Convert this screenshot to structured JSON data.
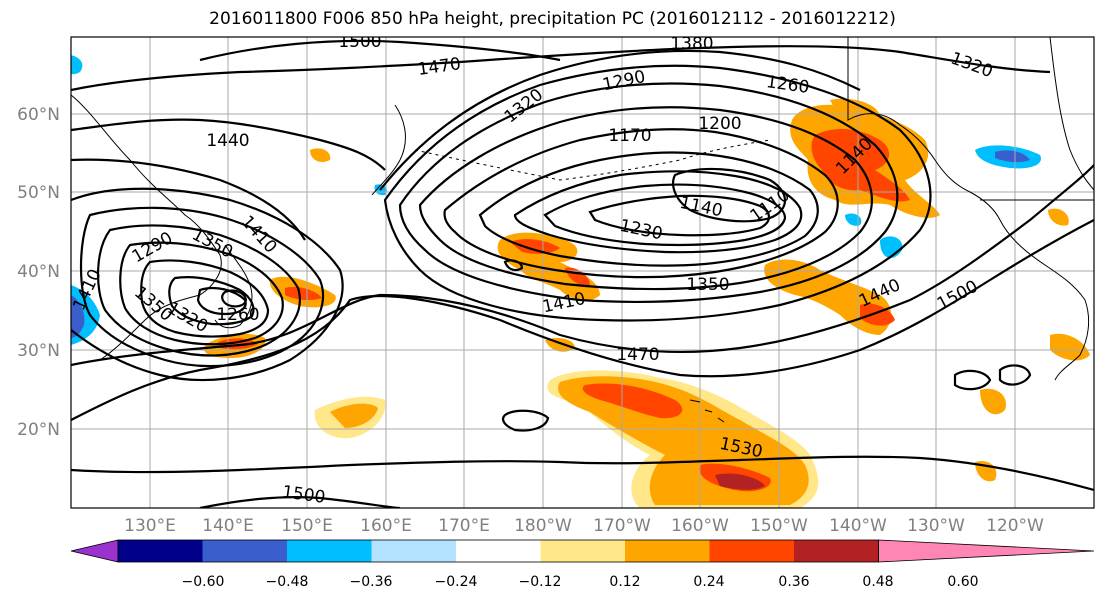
{
  "title": "2016011800 F006 850 hPa height, precipitation PC (2016012112 - 2016012212)",
  "lat_labels": [
    "60°N",
    "50°N",
    "40°N",
    "30°N",
    "20°N"
  ],
  "lon_labels": [
    "130°E",
    "140°E",
    "150°E",
    "160°E",
    "170°E",
    "180°W",
    "170°W",
    "160°W",
    "150°W",
    "140°W",
    "130°W",
    "120°W"
  ],
  "contour_labels": [
    "1500",
    "1380",
    "1470",
    "1320",
    "1290",
    "1260",
    "1440",
    "1320",
    "1170",
    "1200",
    "1140",
    "1140",
    "1110",
    "1230",
    "1410",
    "1350",
    "1290",
    "1350",
    "1410",
    "1350",
    "1320",
    "1260",
    "1410",
    "1440",
    "1500",
    "1470",
    "1530",
    "1500"
  ],
  "colorbar": {
    "ticks": [
      "−0.60",
      "−0.48",
      "−0.36",
      "−0.24",
      "−0.12",
      "0.12",
      "0.24",
      "0.36",
      "0.48",
      "0.60"
    ],
    "colors": [
      "#9a32cd",
      "#00008b",
      "#3a5fcd",
      "#00bfff",
      "#b2e2ff",
      "#ffffff",
      "#ffe78a",
      "#ffa500",
      "#ff4500",
      "#b22222",
      "#ff86b4"
    ]
  },
  "colors": {
    "precip_light": "#ffe78a",
    "precip_mid": "#ffa500",
    "precip_high": "#ff4500",
    "precip_max": "#b22222",
    "neg_light": "#00bfff",
    "neg_mid": "#3a5fcd"
  }
}
